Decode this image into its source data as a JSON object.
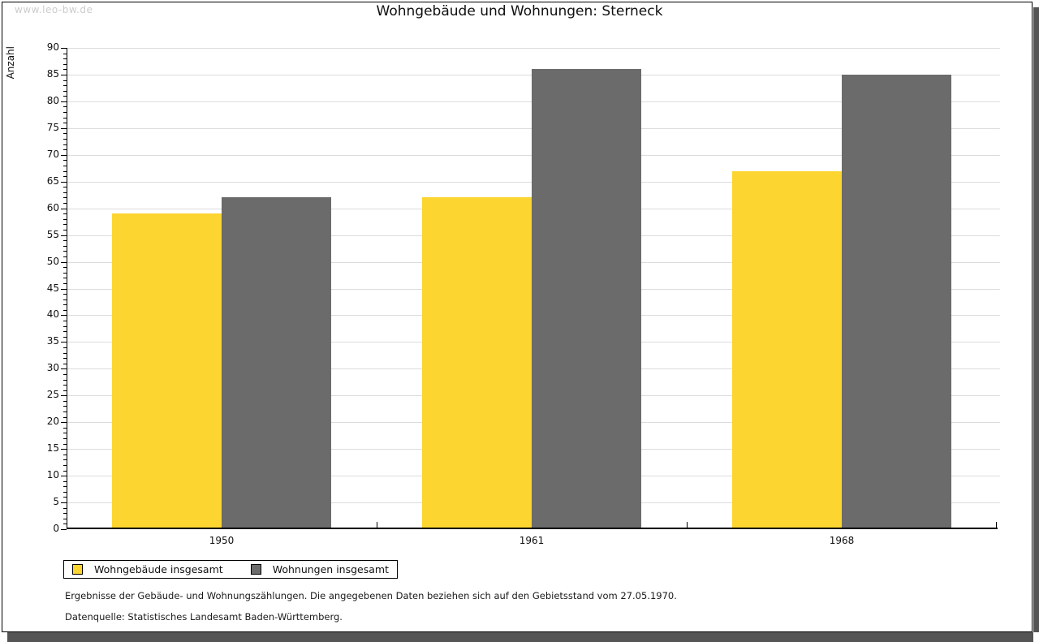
{
  "watermark": "www.leo-bw.de",
  "title": "Wohngebäude und Wohnungen: Sterneck",
  "chart_data": {
    "type": "bar",
    "title": "Wohngebäude und Wohnungen: Sterneck",
    "categories": [
      "1950",
      "1961",
      "1968"
    ],
    "series": [
      {
        "name": "Wohngebäude insgesamt",
        "color": "#FCD530",
        "values": [
          59,
          62,
          67
        ]
      },
      {
        "name": "Wohnungen insgesamt",
        "color": "#6B6B6B",
        "values": [
          62,
          86,
          85
        ]
      }
    ],
    "xlabel": "",
    "ylabel": "Anzahl",
    "ylim": [
      0,
      90
    ],
    "ytick_step": 5,
    "yminortick_step": 1,
    "grid": true,
    "gridline_color": "#dcdcdc",
    "legend_position": "bottom-left"
  },
  "footnotes": [
    "Ergebnisse der Gebäude- und Wohnungszählungen. Die angegebenen Daten beziehen sich auf den Gebietsstand vom 27.05.1970.",
    "Datenquelle: Statistisches Landesamt Baden-Württemberg."
  ]
}
